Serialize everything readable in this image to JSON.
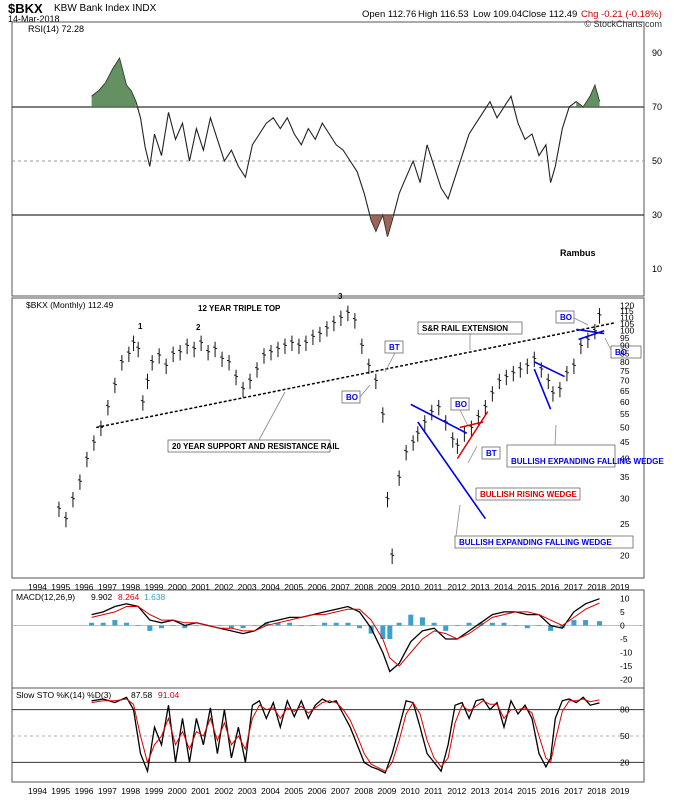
{
  "header": {
    "symbol": "$BKX",
    "name": "KBW Bank Index  INDX",
    "date": "14-Mar-2018",
    "open": "Open 112.76",
    "high": "High 116.53",
    "low": "Low 109.04",
    "close": "Close 112.49",
    "change": "Chg -0.21 (-0.18%)",
    "change_color": "#cc0000",
    "watermark": "© StockCharts.com"
  },
  "chart_data": [
    {
      "type": "line",
      "panel": "rsi",
      "label": "RSI(14) 72.28",
      "annotation": "Rambus",
      "yticks": [
        10,
        30,
        50,
        70,
        90
      ],
      "ylim": [
        0,
        100
      ],
      "reference_lines": [
        30,
        50,
        70
      ],
      "x": [
        1996.3,
        1996.6,
        1996.9,
        1997.2,
        1997.5,
        1997.8,
        1998.0,
        1998.2,
        1998.4,
        1998.6,
        1998.8,
        1999.0,
        1999.3,
        1999.6,
        1999.9,
        2000.2,
        2000.5,
        2000.8,
        2001.1,
        2001.4,
        2001.7,
        2002.0,
        2002.3,
        2002.6,
        2002.9,
        2003.2,
        2003.5,
        2003.8,
        2004.1,
        2004.4,
        2004.7,
        2005.0,
        2005.3,
        2005.6,
        2005.9,
        2006.2,
        2006.5,
        2006.8,
        2007.1,
        2007.4,
        2007.7,
        2008.0,
        2008.3,
        2008.5,
        2008.8,
        2009.0,
        2009.2,
        2009.5,
        2009.8,
        2010.1,
        2010.4,
        2010.7,
        2011.0,
        2011.3,
        2011.6,
        2011.9,
        2012.2,
        2012.5,
        2012.8,
        2013.1,
        2013.4,
        2013.7,
        2014.0,
        2014.3,
        2014.6,
        2014.9,
        2015.2,
        2015.5,
        2015.8,
        2016.0,
        2016.2,
        2016.5,
        2016.8,
        2017.1,
        2017.4,
        2017.7,
        2017.9,
        2018.1
      ],
      "values": [
        74,
        76,
        79,
        84,
        88,
        78,
        76,
        72,
        66,
        55,
        48,
        60,
        52,
        68,
        58,
        64,
        50,
        62,
        54,
        66,
        58,
        50,
        54,
        48,
        44,
        56,
        60,
        64,
        66,
        62,
        66,
        60,
        56,
        62,
        58,
        64,
        60,
        56,
        54,
        50,
        46,
        38,
        28,
        24,
        30,
        22,
        28,
        38,
        44,
        50,
        42,
        56,
        48,
        40,
        36,
        44,
        52,
        60,
        64,
        68,
        72,
        66,
        70,
        74,
        64,
        58,
        60,
        52,
        56,
        42,
        48,
        62,
        70,
        72,
        70,
        74,
        78,
        72
      ],
      "overbought_shading": "green",
      "oversold_shading": "brown"
    },
    {
      "type": "ohlc",
      "panel": "price",
      "label": "$BKX (Monthly) 112.49",
      "ylim_log": [
        17,
        122
      ],
      "yticks": [
        20,
        25,
        30,
        35,
        40,
        45,
        50,
        55,
        60,
        65,
        70,
        75,
        80,
        85,
        90,
        95,
        100,
        105,
        110,
        115,
        120
      ],
      "x_years": [
        "1994",
        "1995",
        "1996",
        "1997",
        "1998",
        "1999",
        "2000",
        "2001",
        "2002",
        "2003",
        "2004",
        "2005",
        "2006",
        "2007",
        "2008",
        "2009",
        "2010",
        "2011",
        "2012",
        "2013",
        "2014",
        "2015",
        "2016",
        "2017",
        "2018",
        "2019"
      ],
      "x": [
        1994.9,
        1995.2,
        1995.5,
        1995.8,
        1996.1,
        1996.4,
        1996.7,
        1997.0,
        1997.3,
        1997.6,
        1997.9,
        1998.1,
        1998.3,
        1998.5,
        1998.7,
        1998.9,
        1999.2,
        1999.5,
        1999.8,
        2000.1,
        2000.4,
        2000.7,
        2001.0,
        2001.3,
        2001.6,
        2001.9,
        2002.2,
        2002.5,
        2002.8,
        2003.1,
        2003.4,
        2003.7,
        2004.0,
        2004.3,
        2004.6,
        2004.9,
        2005.2,
        2005.5,
        2005.8,
        2006.1,
        2006.4,
        2006.7,
        2007.0,
        2007.3,
        2007.6,
        2007.9,
        2008.2,
        2008.5,
        2008.8,
        2009.0,
        2009.2,
        2009.5,
        2009.8,
        2010.1,
        2010.3,
        2010.6,
        2010.9,
        2011.2,
        2011.5,
        2011.8,
        2012.0,
        2012.3,
        2012.6,
        2012.9,
        2013.2,
        2013.5,
        2013.8,
        2014.1,
        2014.4,
        2014.7,
        2015.0,
        2015.3,
        2015.6,
        2015.9,
        2016.1,
        2016.4,
        2016.7,
        2017.0,
        2017.3,
        2017.6,
        2017.9,
        2018.1
      ],
      "values": [
        28,
        26,
        30,
        34,
        40,
        45,
        50,
        58,
        68,
        80,
        85,
        92,
        88,
        60,
        70,
        80,
        84,
        78,
        85,
        86,
        90,
        88,
        92,
        86,
        88,
        82,
        80,
        72,
        66,
        70,
        76,
        84,
        86,
        88,
        90,
        92,
        90,
        92,
        96,
        98,
        102,
        106,
        110,
        114,
        108,
        90,
        78,
        70,
        55,
        30,
        20,
        35,
        42,
        45,
        48,
        52,
        56,
        58,
        52,
        46,
        44,
        48,
        50,
        54,
        58,
        64,
        70,
        72,
        74,
        76,
        78,
        82,
        76,
        70,
        64,
        66,
        74,
        78,
        90,
        94,
        100,
        112
      ],
      "annotations": [
        "1",
        "2",
        "3",
        "12 YEAR TRIPLE TOP",
        "S&R RAIL EXTENSION",
        "BT",
        "BO",
        "20 YEAR SUPPORT AND RESISTANCE RAIL",
        "BO",
        "BT",
        "BULLISH RISING WEDGE",
        "BULLISH EXPANDING FALLING WEDGE",
        "BO",
        "BULLISH EXPANDING FALLING WEDGE",
        "BO",
        "BT 100"
      ]
    },
    {
      "type": "histogram+line",
      "panel": "macd",
      "label": "MACD(12,26,9)",
      "macd": "9.902",
      "signal": "8.264",
      "hist": "1.638",
      "yticks": [
        10,
        5,
        0,
        -5,
        -10,
        -15,
        -20
      ],
      "ylim": [
        -22,
        12
      ],
      "x": [
        1996.3,
        1996.8,
        1997.3,
        1997.8,
        1998.3,
        1998.8,
        1999.3,
        1999.8,
        2000.3,
        2000.8,
        2001.3,
        2001.8,
        2002.3,
        2002.8,
        2003.3,
        2003.8,
        2004.3,
        2004.8,
        2005.3,
        2005.8,
        2006.3,
        2006.8,
        2007.3,
        2007.8,
        2008.3,
        2008.8,
        2009.1,
        2009.5,
        2010.0,
        2010.5,
        2011.0,
        2011.5,
        2012.0,
        2012.5,
        2013.0,
        2013.5,
        2014.0,
        2014.5,
        2015.0,
        2015.5,
        2016.0,
        2016.5,
        2017.0,
        2017.5,
        2018.1
      ],
      "macd_values": [
        4,
        5,
        7,
        8,
        7,
        2,
        1,
        2,
        0,
        1,
        0,
        -1,
        -2,
        -3,
        -2,
        1,
        2,
        3,
        3,
        4,
        5,
        6,
        7,
        5,
        -1,
        -10,
        -17,
        -14,
        -6,
        -2,
        -1,
        -5,
        -5,
        -2,
        1,
        4,
        5,
        5,
        4,
        4,
        0,
        -1,
        5,
        8,
        9.9
      ],
      "signal_values": [
        3,
        4,
        5,
        7,
        7,
        4,
        2,
        2,
        1,
        1,
        0,
        -1,
        -1,
        -2,
        -2,
        0,
        1,
        2,
        3,
        4,
        4,
        5,
        6,
        6,
        2,
        -5,
        -12,
        -15,
        -10,
        -5,
        -2,
        -3,
        -5,
        -3,
        0,
        3,
        4,
        5,
        5,
        4,
        2,
        0,
        3,
        6,
        8.3
      ]
    },
    {
      "type": "line",
      "panel": "sto",
      "label": "Slow STO %K(14) %D(3)",
      "k": "87.58",
      "d": "91.04",
      "yticks": [
        80,
        50,
        20
      ],
      "ylim": [
        0,
        100
      ],
      "x": [
        1996.3,
        1996.8,
        1997.3,
        1997.8,
        1998.1,
        1998.4,
        1998.7,
        1999.0,
        1999.3,
        1999.6,
        1999.9,
        2000.2,
        2000.5,
        2000.8,
        2001.1,
        2001.4,
        2001.7,
        2002.0,
        2002.3,
        2002.6,
        2002.9,
        2003.2,
        2003.5,
        2003.8,
        2004.1,
        2004.4,
        2004.7,
        2005.0,
        2005.3,
        2005.6,
        2005.9,
        2006.2,
        2006.5,
        2006.8,
        2007.1,
        2007.4,
        2007.7,
        2008.0,
        2008.3,
        2008.6,
        2008.9,
        2009.2,
        2009.5,
        2009.8,
        2010.1,
        2010.4,
        2010.7,
        2011.0,
        2011.3,
        2011.6,
        2011.9,
        2012.2,
        2012.5,
        2012.8,
        2013.1,
        2013.4,
        2013.7,
        2014.0,
        2014.3,
        2014.6,
        2014.9,
        2015.2,
        2015.5,
        2015.8,
        2016.0,
        2016.2,
        2016.5,
        2016.8,
        2017.1,
        2017.4,
        2017.7,
        2018.1
      ],
      "k_values": [
        90,
        92,
        88,
        94,
        80,
        30,
        10,
        60,
        40,
        85,
        20,
        70,
        20,
        70,
        40,
        82,
        30,
        80,
        25,
        60,
        20,
        85,
        90,
        70,
        88,
        60,
        90,
        72,
        90,
        70,
        85,
        92,
        88,
        90,
        75,
        60,
        40,
        20,
        15,
        12,
        8,
        30,
        60,
        90,
        88,
        60,
        30,
        20,
        10,
        40,
        85,
        88,
        70,
        90,
        92,
        80,
        88,
        60,
        90,
        75,
        85,
        70,
        30,
        15,
        25,
        70,
        90,
        92,
        88,
        94,
        85,
        87.6
      ],
      "d_values": [
        88,
        90,
        90,
        92,
        86,
        50,
        20,
        40,
        50,
        70,
        40,
        55,
        35,
        55,
        50,
        70,
        45,
        65,
        40,
        50,
        35,
        70,
        85,
        80,
        82,
        70,
        82,
        78,
        84,
        76,
        82,
        88,
        90,
        88,
        80,
        68,
        50,
        30,
        18,
        14,
        10,
        20,
        45,
        75,
        88,
        75,
        45,
        25,
        15,
        25,
        65,
        85,
        78,
        84,
        90,
        86,
        86,
        70,
        80,
        80,
        82,
        76,
        50,
        25,
        20,
        45,
        78,
        90,
        90,
        92,
        89,
        91.04
      ]
    }
  ],
  "bottom_axis_years": [
    "1994",
    "1995",
    "1996",
    "1997",
    "1998",
    "1999",
    "2000",
    "2001",
    "2002",
    "2003",
    "2004",
    "2005",
    "2006",
    "2007",
    "2008",
    "2009",
    "2010",
    "2011",
    "2012",
    "2013",
    "2014",
    "2015",
    "2016",
    "2017",
    "2018",
    "2019"
  ],
  "colors": {
    "red": "#dd0000",
    "blue": "#0000ee",
    "hist": "#3b9fd0",
    "green_fill": "#4a7c45",
    "brown_fill": "#8b4a40"
  }
}
